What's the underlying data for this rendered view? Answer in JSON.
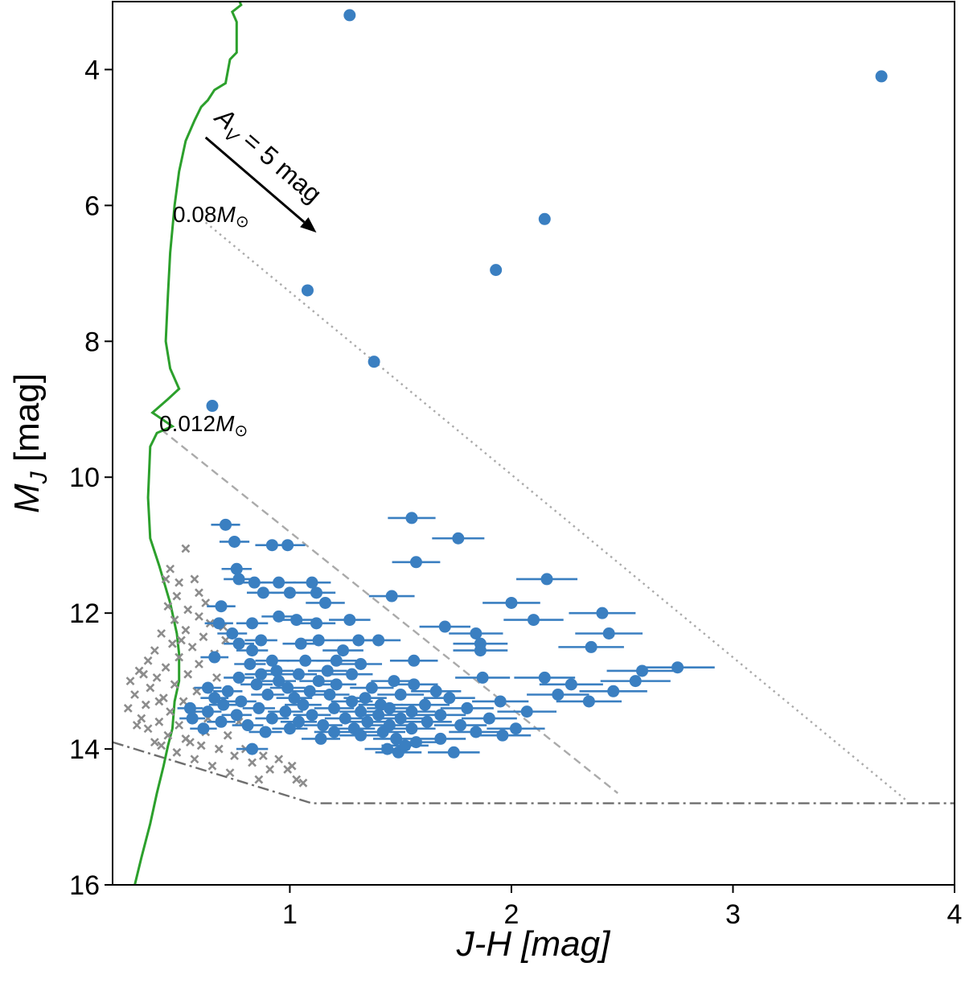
{
  "chart_data": {
    "type": "scatter",
    "xlabel": "J-H [mag]",
    "ylabel_main": "M",
    "ylabel_sub": "J",
    "ylabel_unit": " [mag]",
    "xlim": [
      0.2,
      4.0
    ],
    "ylim": [
      16.0,
      3.0
    ],
    "xticks": [
      1,
      2,
      3,
      4
    ],
    "xtick_labels": [
      "1",
      "2",
      "3",
      "4"
    ],
    "yticks": [
      4,
      6,
      8,
      10,
      12,
      14,
      16
    ],
    "ytick_labels": [
      "4",
      "6",
      "8",
      "10",
      "12",
      "14",
      "16"
    ],
    "colors": {
      "members": "#3a7fc1",
      "others": "#8c8c8c",
      "isochrone": "#2ca02c",
      "dashed": "#aaaaaa",
      "dotted": "#aaaaaa",
      "dashdot": "#6e6e6e",
      "arrow": "#000000"
    },
    "annotations": {
      "reddening_pre": "A",
      "reddening_sub": "V",
      "reddening_post": " = 5 mag",
      "mass_high_num": "0.08",
      "mass_low_num": "0.012",
      "mass_unit": "M",
      "sun_symbol": "⊙"
    },
    "reddening_arrow": {
      "x0": 0.62,
      "y0": 5.0,
      "x1": 1.12,
      "y1": 6.4
    },
    "isochrone": {
      "name": "isochrone",
      "points": [
        [
          0.76,
          2.9
        ],
        [
          0.78,
          3.05
        ],
        [
          0.74,
          3.15
        ],
        [
          0.76,
          3.3
        ],
        [
          0.76,
          3.75
        ],
        [
          0.73,
          3.85
        ],
        [
          0.71,
          4.2
        ],
        [
          0.66,
          4.3
        ],
        [
          0.63,
          4.45
        ],
        [
          0.6,
          4.55
        ],
        [
          0.57,
          4.75
        ],
        [
          0.53,
          5.05
        ],
        [
          0.5,
          5.5
        ],
        [
          0.48,
          6.0
        ],
        [
          0.46,
          6.7
        ],
        [
          0.45,
          7.3
        ],
        [
          0.44,
          8.0
        ],
        [
          0.46,
          8.4
        ],
        [
          0.5,
          8.7
        ],
        [
          0.45,
          8.85
        ],
        [
          0.38,
          9.05
        ],
        [
          0.47,
          9.25
        ],
        [
          0.4,
          9.35
        ],
        [
          0.37,
          9.55
        ],
        [
          0.36,
          10.3
        ],
        [
          0.37,
          10.9
        ],
        [
          0.41,
          11.3
        ],
        [
          0.46,
          11.85
        ],
        [
          0.49,
          12.3
        ],
        [
          0.5,
          12.6
        ],
        [
          0.5,
          13.0
        ],
        [
          0.48,
          13.3
        ],
        [
          0.47,
          13.7
        ],
        [
          0.45,
          13.95
        ],
        [
          0.43,
          14.25
        ],
        [
          0.4,
          14.65
        ],
        [
          0.37,
          15.1
        ],
        [
          0.33,
          15.6
        ],
        [
          0.3,
          16.0
        ]
      ]
    },
    "lines": [
      {
        "name": "dashed-limit",
        "style": "dashed",
        "points": [
          [
            0.42,
            9.3
          ],
          [
            2.48,
            14.65
          ]
        ]
      },
      {
        "name": "dotted-limit",
        "style": "dotted",
        "points": [
          [
            0.62,
            6.25
          ],
          [
            3.78,
            14.75
          ]
        ]
      },
      {
        "name": "dashdot-limit",
        "style": "dashdot",
        "points": [
          [
            0.2,
            13.9
          ],
          [
            1.1,
            14.8
          ],
          [
            4.0,
            14.8
          ]
        ]
      }
    ],
    "series": [
      {
        "name": "members",
        "marker": "circle",
        "points": [
          [
            1.27,
            3.2
          ],
          [
            3.67,
            4.1
          ],
          [
            2.15,
            6.2
          ],
          [
            1.93,
            6.95
          ],
          [
            1.08,
            7.25
          ],
          [
            1.38,
            8.3
          ],
          [
            0.65,
            8.95
          ],
          [
            1.55,
            10.6
          ],
          [
            1.76,
            10.9
          ],
          [
            0.71,
            10.7
          ],
          [
            0.75,
            10.95
          ],
          [
            0.92,
            11.0
          ],
          [
            0.99,
            11.0
          ],
          [
            1.57,
            11.25
          ],
          [
            0.76,
            11.35
          ],
          [
            0.77,
            11.5
          ],
          [
            2.16,
            11.5
          ],
          [
            0.84,
            11.55
          ],
          [
            0.95,
            11.55
          ],
          [
            1.1,
            11.55
          ],
          [
            0.88,
            11.7
          ],
          [
            1.0,
            11.7
          ],
          [
            1.12,
            11.7
          ],
          [
            1.46,
            11.75
          ],
          [
            1.16,
            11.85
          ],
          [
            2.0,
            11.85
          ],
          [
            0.69,
            11.9
          ],
          [
            2.41,
            12.0
          ],
          [
            0.95,
            12.05
          ],
          [
            1.03,
            12.1
          ],
          [
            1.27,
            12.1
          ],
          [
            2.1,
            12.1
          ],
          [
            0.68,
            12.15
          ],
          [
            0.83,
            12.15
          ],
          [
            1.12,
            12.15
          ],
          [
            1.7,
            12.2
          ],
          [
            0.74,
            12.3
          ],
          [
            1.84,
            12.3
          ],
          [
            2.44,
            12.3
          ],
          [
            0.87,
            12.4
          ],
          [
            1.13,
            12.4
          ],
          [
            1.31,
            12.4
          ],
          [
            1.4,
            12.4
          ],
          [
            0.77,
            12.45
          ],
          [
            1.05,
            12.45
          ],
          [
            1.86,
            12.45
          ],
          [
            2.36,
            12.5
          ],
          [
            0.83,
            12.55
          ],
          [
            1.24,
            12.55
          ],
          [
            1.86,
            12.55
          ],
          [
            0.66,
            12.65
          ],
          [
            0.92,
            12.7
          ],
          [
            1.07,
            12.7
          ],
          [
            1.21,
            12.7
          ],
          [
            1.56,
            12.7
          ],
          [
            0.82,
            12.75
          ],
          [
            1.32,
            12.75
          ],
          [
            2.75,
            12.8
          ],
          [
            0.94,
            12.85
          ],
          [
            1.17,
            12.85
          ],
          [
            2.59,
            12.85
          ],
          [
            0.87,
            12.9
          ],
          [
            1.04,
            12.9
          ],
          [
            1.28,
            12.9
          ],
          [
            0.77,
            12.95
          ],
          [
            1.87,
            12.95
          ],
          [
            2.15,
            12.95
          ],
          [
            0.95,
            13.0
          ],
          [
            1.13,
            13.0
          ],
          [
            1.47,
            13.0
          ],
          [
            2.56,
            13.0
          ],
          [
            0.85,
            13.05
          ],
          [
            1.21,
            13.05
          ],
          [
            1.56,
            13.05
          ],
          [
            2.27,
            13.05
          ],
          [
            0.63,
            13.1
          ],
          [
            0.99,
            13.1
          ],
          [
            1.37,
            13.1
          ],
          [
            0.72,
            13.15
          ],
          [
            1.09,
            13.15
          ],
          [
            1.66,
            13.15
          ],
          [
            2.46,
            13.15
          ],
          [
            0.9,
            13.2
          ],
          [
            1.18,
            13.2
          ],
          [
            1.5,
            13.2
          ],
          [
            2.21,
            13.2
          ],
          [
            0.66,
            13.25
          ],
          [
            1.02,
            13.25
          ],
          [
            1.34,
            13.25
          ],
          [
            1.72,
            13.25
          ],
          [
            0.78,
            13.3
          ],
          [
            1.28,
            13.3
          ],
          [
            1.95,
            13.3
          ],
          [
            2.35,
            13.3
          ],
          [
            0.7,
            13.35
          ],
          [
            1.06,
            13.35
          ],
          [
            1.41,
            13.35
          ],
          [
            1.61,
            13.35
          ],
          [
            0.55,
            13.4
          ],
          [
            0.86,
            13.4
          ],
          [
            1.2,
            13.4
          ],
          [
            1.45,
            13.4
          ],
          [
            1.8,
            13.4
          ],
          [
            0.63,
            13.45
          ],
          [
            0.98,
            13.45
          ],
          [
            1.32,
            13.45
          ],
          [
            1.55,
            13.45
          ],
          [
            2.07,
            13.45
          ],
          [
            0.76,
            13.5
          ],
          [
            1.1,
            13.5
          ],
          [
            1.4,
            13.5
          ],
          [
            1.68,
            13.5
          ],
          [
            0.56,
            13.55
          ],
          [
            0.92,
            13.55
          ],
          [
            1.25,
            13.55
          ],
          [
            1.5,
            13.55
          ],
          [
            1.9,
            13.55
          ],
          [
            0.69,
            13.6
          ],
          [
            1.04,
            13.6
          ],
          [
            1.35,
            13.6
          ],
          [
            1.62,
            13.6
          ],
          [
            0.81,
            13.65
          ],
          [
            1.15,
            13.65
          ],
          [
            1.45,
            13.65
          ],
          [
            1.77,
            13.65
          ],
          [
            0.61,
            13.7
          ],
          [
            1.0,
            13.7
          ],
          [
            1.29,
            13.7
          ],
          [
            1.55,
            13.7
          ],
          [
            2.02,
            13.7
          ],
          [
            0.89,
            13.75
          ],
          [
            1.2,
            13.75
          ],
          [
            1.42,
            13.75
          ],
          [
            1.84,
            13.75
          ],
          [
            1.32,
            13.8
          ],
          [
            1.96,
            13.8
          ],
          [
            1.14,
            13.85
          ],
          [
            1.48,
            13.85
          ],
          [
            1.68,
            13.85
          ],
          [
            1.57,
            13.9
          ],
          [
            0.83,
            14.0
          ],
          [
            1.44,
            14.0
          ],
          [
            1.49,
            14.05
          ],
          [
            1.74,
            14.05
          ],
          [
            1.52,
            13.95
          ]
        ]
      },
      {
        "name": "others",
        "marker": "x",
        "points": [
          [
            0.53,
            11.05
          ],
          [
            0.46,
            11.35
          ],
          [
            0.44,
            11.5
          ],
          [
            0.5,
            11.55
          ],
          [
            0.57,
            11.5
          ],
          [
            0.59,
            11.7
          ],
          [
            0.49,
            11.75
          ],
          [
            0.62,
            11.85
          ],
          [
            0.45,
            11.9
          ],
          [
            0.54,
            11.95
          ],
          [
            0.59,
            12.05
          ],
          [
            0.48,
            12.1
          ],
          [
            0.64,
            12.15
          ],
          [
            0.7,
            12.2
          ],
          [
            0.53,
            12.25
          ],
          [
            0.42,
            12.3
          ],
          [
            0.61,
            12.35
          ],
          [
            0.71,
            12.4
          ],
          [
            0.47,
            12.45
          ],
          [
            0.56,
            12.5
          ],
          [
            0.39,
            12.55
          ],
          [
            0.66,
            12.6
          ],
          [
            0.5,
            12.65
          ],
          [
            0.36,
            12.7
          ],
          [
            0.59,
            12.75
          ],
          [
            0.44,
            12.8
          ],
          [
            0.32,
            12.85
          ],
          [
            0.54,
            12.9
          ],
          [
            0.4,
            12.95
          ],
          [
            0.28,
            13.0
          ],
          [
            0.48,
            13.05
          ],
          [
            0.37,
            13.1
          ],
          [
            0.58,
            13.15
          ],
          [
            0.3,
            13.2
          ],
          [
            0.43,
            13.25
          ],
          [
            0.52,
            13.3
          ],
          [
            0.35,
            13.35
          ],
          [
            0.27,
            13.4
          ],
          [
            0.46,
            13.45
          ],
          [
            0.56,
            13.5
          ],
          [
            0.33,
            13.55
          ],
          [
            0.41,
            13.6
          ],
          [
            0.5,
            13.65
          ],
          [
            0.36,
            13.7
          ],
          [
            0.62,
            13.75
          ],
          [
            0.45,
            13.8
          ],
          [
            0.53,
            13.85
          ],
          [
            0.39,
            13.9
          ],
          [
            0.6,
            13.95
          ],
          [
            0.68,
            14.0
          ],
          [
            0.49,
            14.05
          ],
          [
            0.75,
            14.1
          ],
          [
            0.57,
            14.15
          ],
          [
            0.83,
            14.2
          ],
          [
            0.65,
            14.25
          ],
          [
            0.91,
            14.3
          ],
          [
            0.73,
            14.35
          ],
          [
            0.99,
            14.3
          ],
          [
            0.86,
            14.45
          ],
          [
            1.03,
            14.45
          ],
          [
            1.06,
            14.5
          ],
          [
            0.41,
            13.3
          ],
          [
            0.55,
            13.9
          ],
          [
            0.63,
            13.55
          ],
          [
            0.72,
            13.8
          ],
          [
            0.8,
            14.0
          ],
          [
            0.88,
            14.1
          ],
          [
            0.95,
            14.15
          ],
          [
            1.01,
            14.25
          ],
          [
            0.34,
            12.9
          ],
          [
            0.51,
            12.4
          ],
          [
            0.67,
            12.95
          ],
          [
            0.77,
            13.6
          ],
          [
            0.42,
            13.95
          ],
          [
            0.31,
            13.65
          ]
        ]
      }
    ]
  }
}
